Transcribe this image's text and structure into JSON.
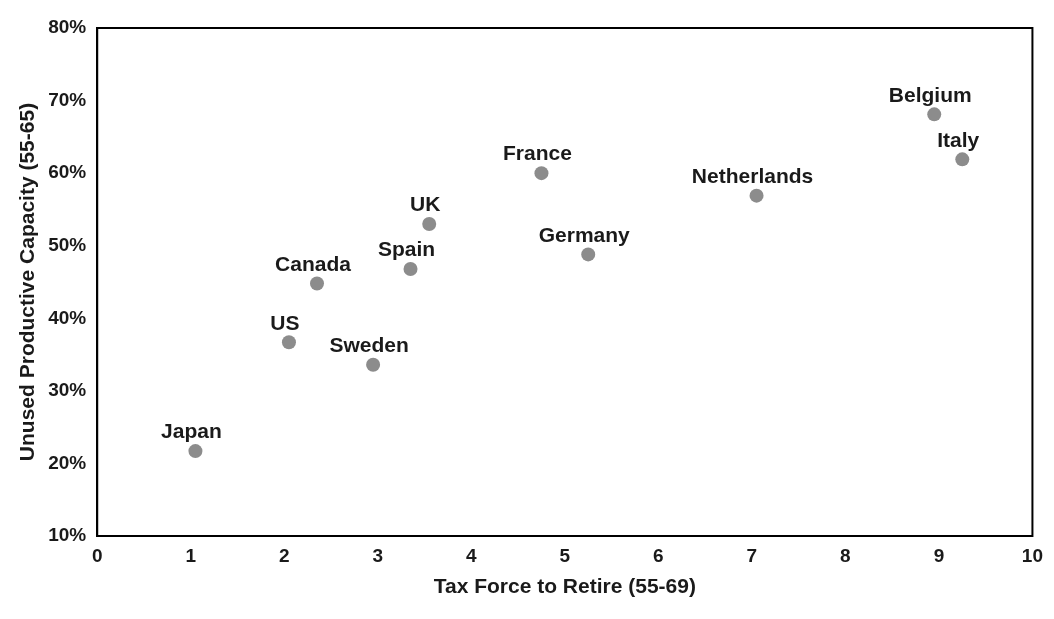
{
  "chart_data": {
    "type": "scatter",
    "xlabel": "Tax Force to Retire (55-69)",
    "ylabel": "Unused Productive Capacity (55-65)",
    "xlim": [
      0,
      10
    ],
    "xticks": [
      0,
      1,
      2,
      3,
      4,
      5,
      6,
      7,
      8,
      9,
      10
    ],
    "ylim": [
      10,
      80
    ],
    "yticks": [
      {
        "value": 10,
        "label": "10%"
      },
      {
        "value": 20,
        "label": "20%"
      },
      {
        "value": 30,
        "label": "30%"
      },
      {
        "value": 40,
        "label": "40%"
      },
      {
        "value": 50,
        "label": "50%"
      },
      {
        "value": 60,
        "label": "60%"
      },
      {
        "value": 70,
        "label": "70%"
      },
      {
        "value": 80,
        "label": "80%"
      }
    ],
    "grid": false,
    "legend": false,
    "marker": "circle",
    "series": [
      {
        "name": "Japan",
        "color": "#8c8c8c",
        "x": [
          1.05
        ],
        "values": [
          21.7
        ]
      },
      {
        "name": "US",
        "color": "#8c8c8c",
        "x": [
          2.05
        ],
        "values": [
          36.7
        ]
      },
      {
        "name": "Canada",
        "color": "#8c8c8c",
        "x": [
          2.35
        ],
        "values": [
          44.8
        ]
      },
      {
        "name": "Sweden",
        "color": "#8c8c8c",
        "x": [
          2.95
        ],
        "values": [
          33.6
        ]
      },
      {
        "name": "Spain",
        "color": "#8c8c8c",
        "x": [
          3.35
        ],
        "values": [
          46.8
        ]
      },
      {
        "name": "UK",
        "color": "#8c8c8c",
        "x": [
          3.55
        ],
        "values": [
          53.0
        ]
      },
      {
        "name": "France",
        "color": "#8c8c8c",
        "x": [
          4.75
        ],
        "values": [
          60.0
        ]
      },
      {
        "name": "Germany",
        "color": "#8c8c8c",
        "x": [
          5.25
        ],
        "values": [
          48.8
        ]
      },
      {
        "name": "Netherlands",
        "color": "#8c8c8c",
        "x": [
          7.05
        ],
        "values": [
          56.9
        ]
      },
      {
        "name": "Belgium",
        "color": "#8c8c8c",
        "x": [
          8.95
        ],
        "values": [
          68.1
        ]
      },
      {
        "name": "Italy",
        "color": "#8c8c8c",
        "x": [
          9.25
        ],
        "values": [
          61.9
        ]
      }
    ]
  }
}
